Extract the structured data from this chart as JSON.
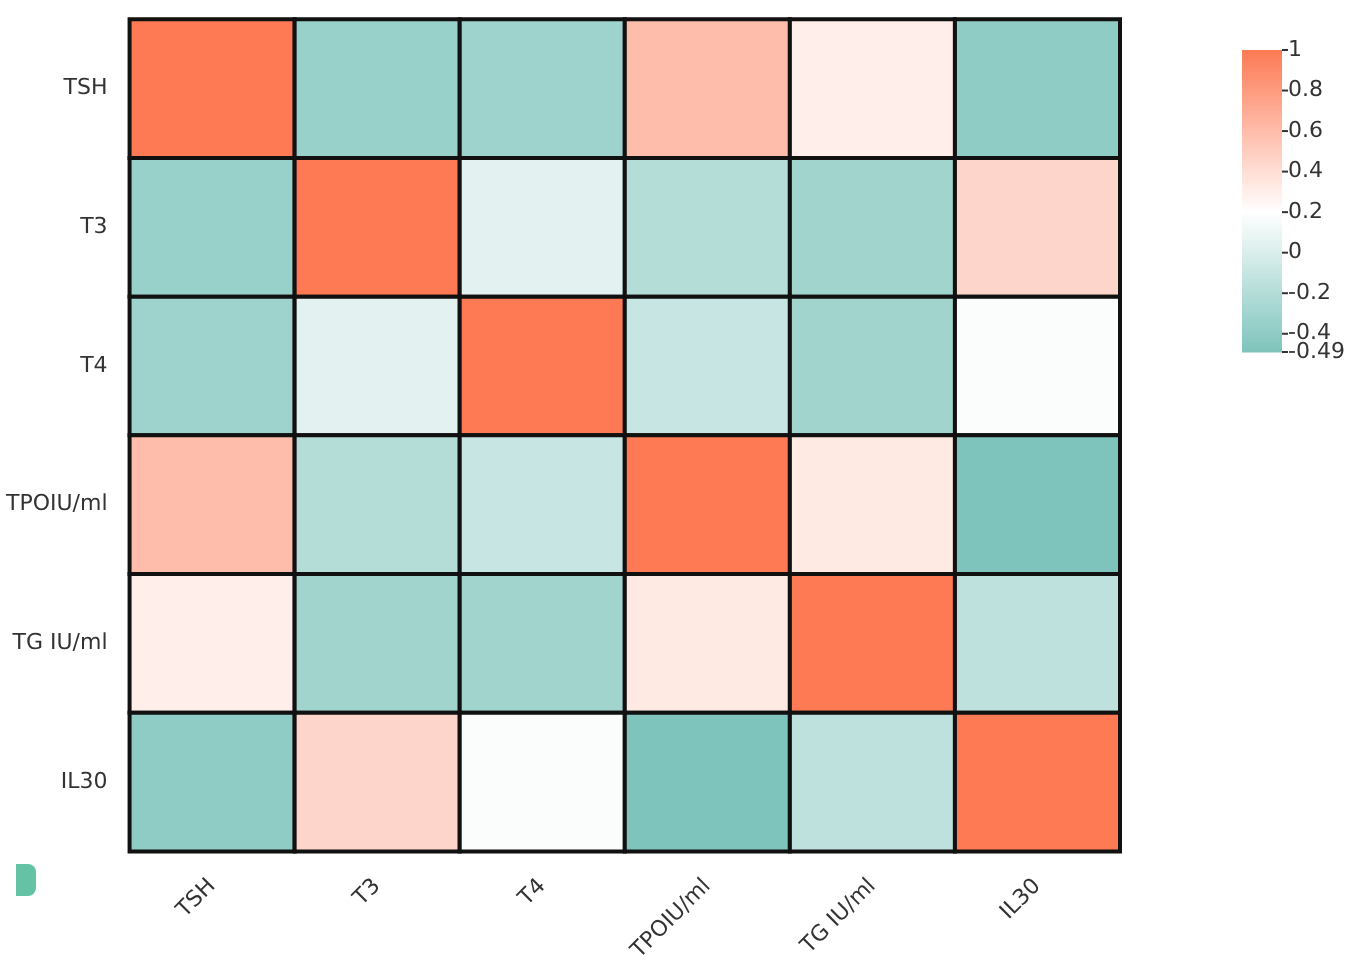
{
  "chart_data": {
    "type": "heatmap",
    "categories": [
      "TSH",
      "T3",
      "T4",
      "TPOIU/ml",
      "TG IU/ml",
      "IL30"
    ],
    "y_categories": [
      "TSH",
      "T3",
      "T4",
      "TPOIU/ml",
      "TG IU/ml",
      "IL30"
    ],
    "cells": [
      [
        1,
        -0.35,
        -0.32,
        0.6,
        0.3,
        -0.4
      ],
      [
        -0.35,
        1,
        0.05,
        -0.2,
        -0.3,
        0.45
      ],
      [
        -0.32,
        0.05,
        1,
        -0.1,
        -0.3,
        0.18
      ],
      [
        0.6,
        -0.2,
        -0.1,
        1,
        0.33,
        -0.49
      ],
      [
        0.3,
        -0.3,
        -0.3,
        0.33,
        1,
        -0.15
      ],
      [
        -0.4,
        0.45,
        0.18,
        -0.49,
        -0.15,
        1
      ]
    ],
    "clim": [
      -0.49,
      1
    ],
    "cticks": [
      1,
      0.8,
      0.6,
      0.4,
      0.2,
      0,
      -0.2,
      -0.4,
      -0.49
    ]
  }
}
